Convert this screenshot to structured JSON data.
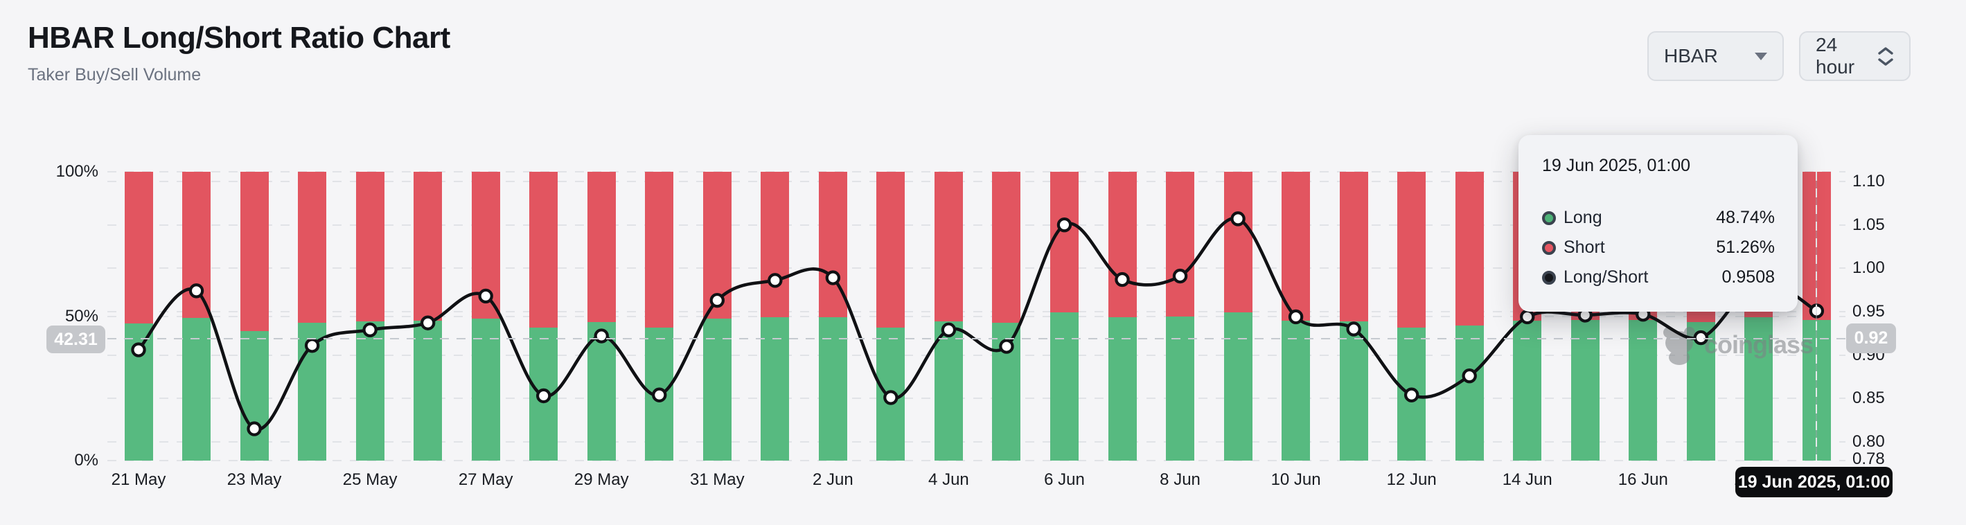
{
  "header": {
    "title": "HBAR Long/Short Ratio Chart",
    "subtitle": "Taker Buy/Sell Volume"
  },
  "controls": {
    "symbol": {
      "value": "HBAR"
    },
    "interval": {
      "value": "24 hour"
    }
  },
  "axes": {
    "left_ticks": [
      "100%",
      "50%",
      "0%"
    ],
    "right_ticks": [
      "1.10",
      "1.05",
      "1.00",
      "0.95",
      "0.90",
      "0.85",
      "0.80",
      "0.78"
    ],
    "x_ticks": [
      "21 May",
      "23 May",
      "25 May",
      "27 May",
      "29 May",
      "31 May",
      "2 Jun",
      "4 Jun",
      "6 Jun",
      "8 Jun",
      "10 Jun",
      "12 Jun",
      "14 Jun",
      "16 Jun",
      "18 Jun"
    ]
  },
  "crosshair": {
    "left_axis_value": "42.31",
    "right_axis_value": "0.92",
    "x_axis_value": "19 Jun 2025, 01:00"
  },
  "tooltip": {
    "title": "19 Jun 2025, 01:00",
    "rows": [
      {
        "label": "Long",
        "value": "48.74%",
        "marker_color": "#4db277"
      },
      {
        "label": "Short",
        "value": "51.26%",
        "marker_color": "#e65662"
      },
      {
        "label": "Long/Short",
        "value": "0.9508",
        "marker_color": "#15171c"
      }
    ]
  },
  "watermark": {
    "text": "coinglass"
  },
  "colors": {
    "long_green": "#57ba80",
    "short_red": "#e25560",
    "line_black": "#101114",
    "grid_gray": "#e1e3e7"
  },
  "chart_data": {
    "type": "stacked-percent-bar+line",
    "title": "HBAR Long/Short Ratio Chart",
    "subtitle": "Taker Buy/Sell Volume",
    "x": [
      "21 May",
      "22 May",
      "23 May",
      "24 May",
      "25 May",
      "26 May",
      "27 May",
      "28 May",
      "29 May",
      "30 May",
      "31 May",
      "1 Jun",
      "2 Jun",
      "3 Jun",
      "4 Jun",
      "5 Jun",
      "6 Jun",
      "7 Jun",
      "8 Jun",
      "9 Jun",
      "10 Jun",
      "11 Jun",
      "12 Jun",
      "13 Jun",
      "14 Jun",
      "15 Jun",
      "16 Jun",
      "17 Jun",
      "18 Jun",
      "19 Jun"
    ],
    "series": [
      {
        "name": "Long",
        "type": "bar",
        "unit": "%",
        "axis": "left",
        "values": [
          47.53,
          49.34,
          44.9,
          47.67,
          48.16,
          48.37,
          49.19,
          46.03,
          47.97,
          46.06,
          49.06,
          49.65,
          49.72,
          45.97,
          48.16,
          47.64,
          51.22,
          49.67,
          49.77,
          51.39,
          48.56,
          48.19,
          46.06,
          46.7,
          48.56,
          48.61,
          48.64,
          47.92,
          49.62,
          48.74
        ]
      },
      {
        "name": "Short",
        "type": "bar",
        "unit": "%",
        "axis": "left",
        "values": [
          52.47,
          50.66,
          55.1,
          52.33,
          51.84,
          51.63,
          50.81,
          53.97,
          52.03,
          53.94,
          50.94,
          50.35,
          50.28,
          54.03,
          51.84,
          52.36,
          48.78,
          50.33,
          50.23,
          48.61,
          51.44,
          51.81,
          53.94,
          53.3,
          51.44,
          51.39,
          51.36,
          52.08,
          50.38,
          51.26
        ]
      },
      {
        "name": "Long/Short",
        "type": "line",
        "axis": "right",
        "values": [
          0.906,
          0.974,
          0.815,
          0.911,
          0.929,
          0.937,
          0.968,
          0.853,
          0.922,
          0.854,
          0.963,
          0.986,
          0.989,
          0.851,
          0.929,
          0.91,
          1.05,
          0.987,
          0.991,
          1.057,
          0.944,
          0.93,
          0.854,
          0.876,
          0.944,
          0.946,
          0.947,
          0.92,
          0.985,
          0.9508
        ]
      }
    ],
    "left_axis": {
      "min": 0,
      "max": 100,
      "unit": "%",
      "ticks": [
        "0%",
        "50%",
        "100%"
      ]
    },
    "right_axis": {
      "min": 0.78,
      "max": 1.113,
      "ticks": [
        1.1,
        1.05,
        1.0,
        0.95,
        0.9,
        0.85,
        0.8,
        0.78
      ]
    },
    "grid": true,
    "legend_position": "none",
    "hovered_point": {
      "x": "19 Jun 2025, 01:00",
      "long_pct": 48.74,
      "short_pct": 51.26,
      "long_short_ratio": 0.9508
    }
  }
}
